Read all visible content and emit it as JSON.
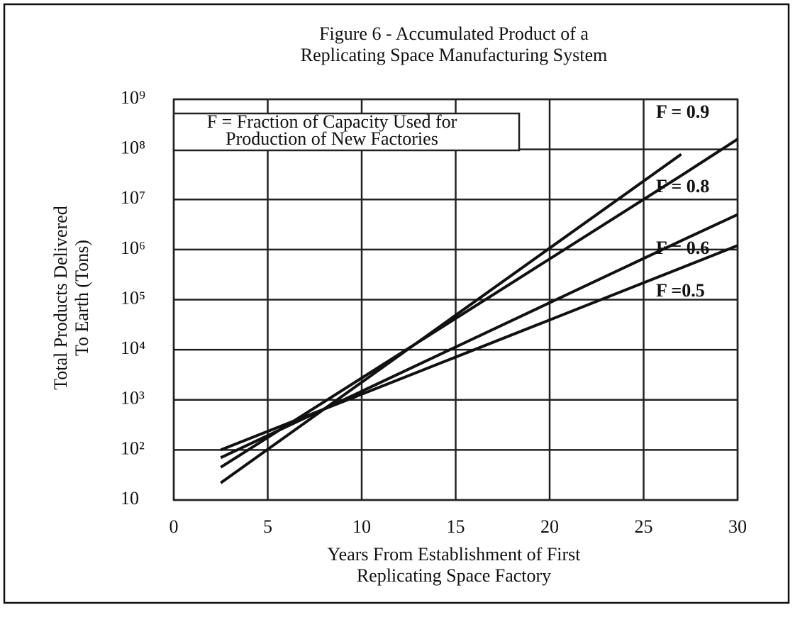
{
  "chart_data": {
    "type": "line",
    "title": [
      "Figure 6 - Accumulated Product of a",
      "Replicating Space Manufacturing System"
    ],
    "x_label": [
      "Years From Establishment of First",
      "Replicating Space Factory"
    ],
    "y_label": [
      "Total Products Delivered",
      "To Earth (Tons)"
    ],
    "legend_note": [
      "F = Fraction of Capacity Used for",
      "Production of New Factories"
    ],
    "log_y": true,
    "grid": true,
    "x": [
      2.5,
      27,
      30
    ],
    "series": [
      {
        "name": "F = 0.9",
        "color": "#111111",
        "values": [
          22,
          80000000,
          null
        ]
      },
      {
        "name": "F = 0.8",
        "color": "#111111",
        "values": [
          45,
          30000000,
          160000000
        ]
      },
      {
        "name": "F = 0.6",
        "color": "#111111",
        "values": [
          70,
          1500000,
          5000000
        ]
      },
      {
        "name": "F =0.5",
        "color": "#111111",
        "values": [
          100,
          430000,
          1200000
        ]
      }
    ],
    "xlim": [
      0,
      30
    ],
    "xticks": [
      0,
      5,
      10,
      15,
      20,
      25,
      30
    ],
    "ylim": [
      10,
      1000000000
    ],
    "yticks": [
      10,
      {
        "value": 100,
        "label": "10²"
      },
      {
        "value": 1000,
        "label": "10³"
      },
      {
        "value": 10000,
        "label": "10⁴"
      },
      {
        "value": 100000,
        "label": "10⁵"
      },
      {
        "value": 1000000,
        "label": "10⁶"
      },
      {
        "value": 10000000,
        "label": "10⁷"
      },
      {
        "value": 100000000,
        "label": "10⁸"
      },
      {
        "value": 1000000000,
        "label": "10⁹"
      }
    ]
  }
}
